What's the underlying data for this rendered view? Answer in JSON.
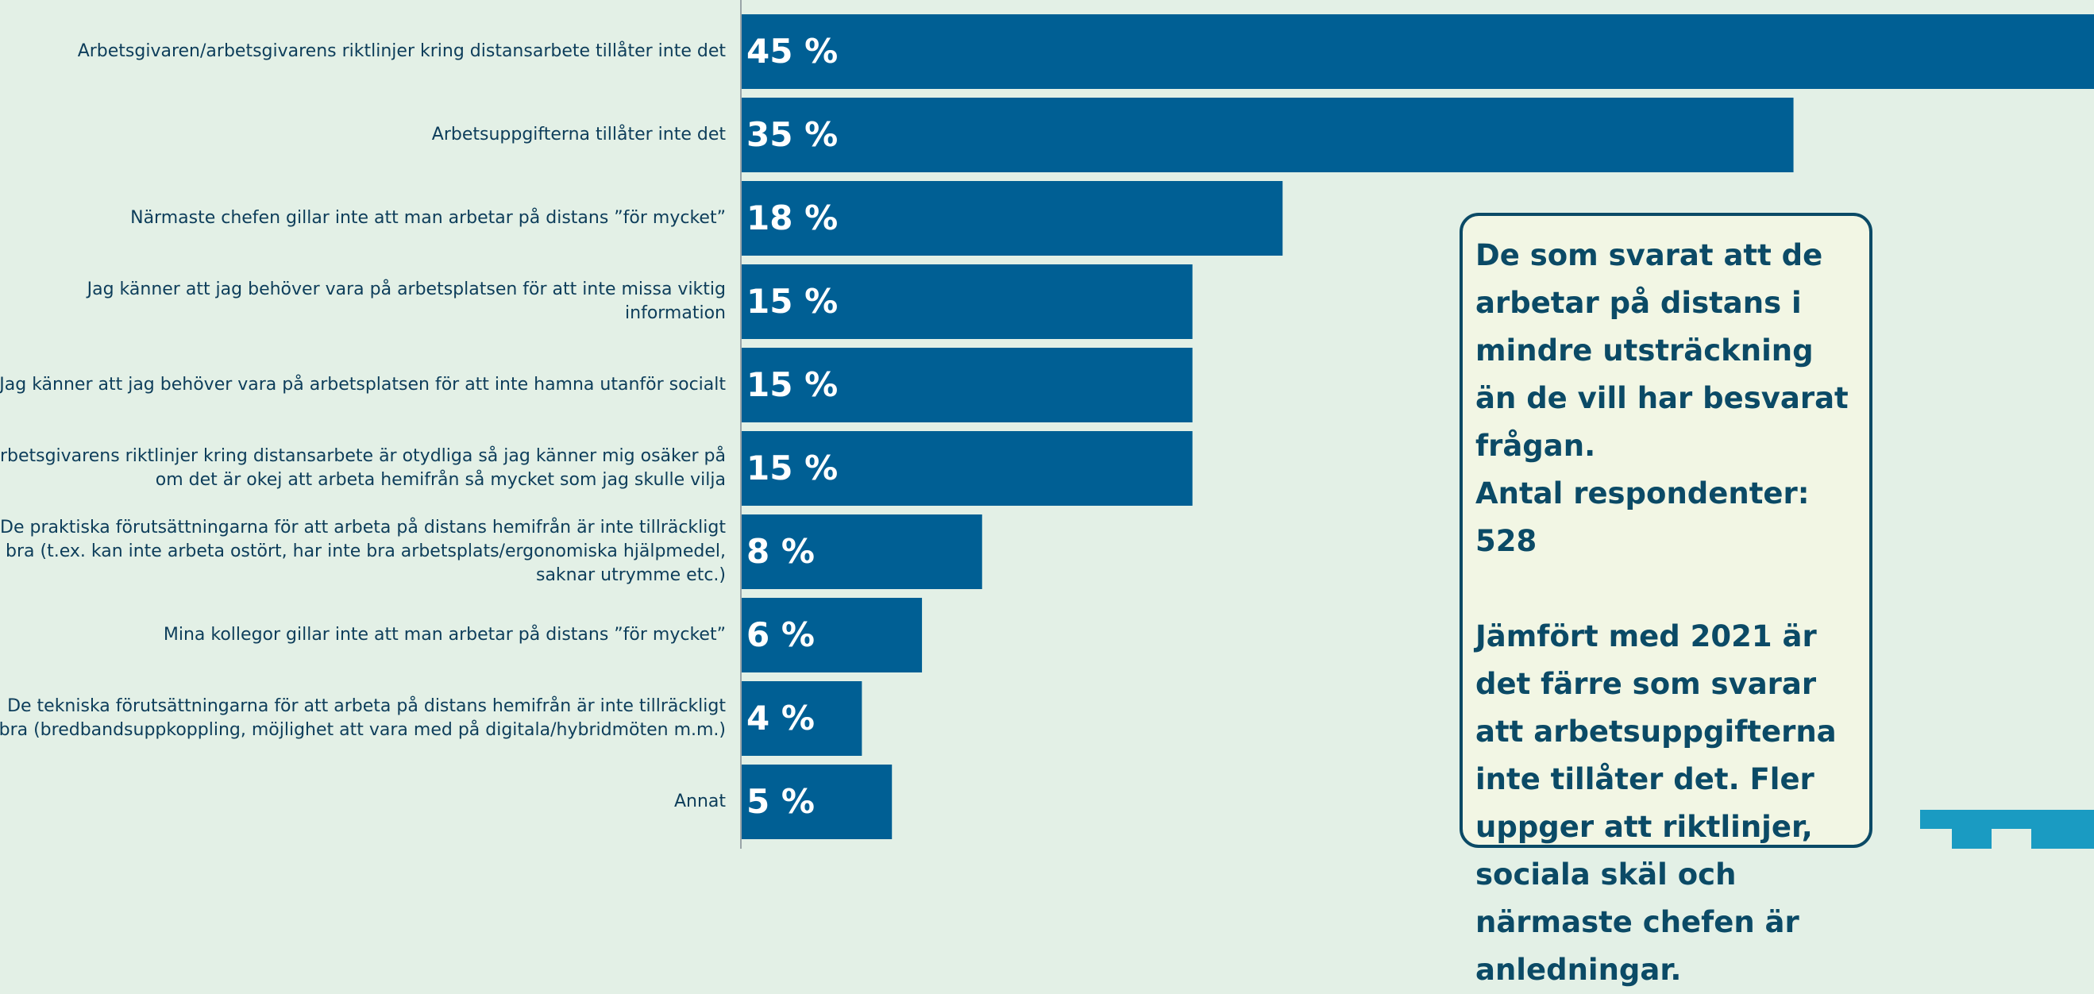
{
  "chart_data": {
    "type": "bar",
    "orientation": "horizontal",
    "categories": [
      "Arbetsgivaren/arbetsgivarens riktlinjer kring distansarbete tillåter inte det",
      "Arbetsuppgifterna tillåter inte det",
      "Närmaste chefen gillar inte att man arbetar på distans ”för mycket”",
      "Jag känner att jag behöver vara på arbetsplatsen för att inte missa viktig information",
      "Jag känner att jag behöver vara på arbetsplatsen för att inte hamna utanför socialt",
      "Arbetsgivarens riktlinjer kring distansarbete är otydliga så jag känner mig osäker på om det är okej att arbeta hemifrån så mycket som jag skulle vilja",
      "De praktiska förutsättningarna för att arbeta på distans hemifrån är inte tillräckligt bra (t.ex. kan inte arbeta ostört, har inte bra arbetsplats/ergonomiska hjälpmedel, saknar utrymme etc.)",
      "Mina kollegor gillar inte att man arbetar på distans ”för mycket”",
      "De tekniska förutsättningarna för att arbeta på distans hemifrån är inte tillräckligt bra (bredbandsuppkoppling, möjlighet att vara med på digitala/hybridmöten m.m.)",
      "Annat"
    ],
    "values": [
      45,
      35,
      18,
      15,
      15,
      15,
      8,
      6,
      4,
      5
    ],
    "value_labels": [
      "45 %",
      "35 %",
      "18 %",
      "15 %",
      "15 %",
      "15 %",
      "8 %",
      "6 %",
      "4 %",
      "5 %"
    ],
    "title": "",
    "xlabel": "",
    "ylabel": "",
    "xlim": [
      0,
      45
    ],
    "grid": false,
    "colors": {
      "bar": "#005f94",
      "background": "#e3f0e6",
      "axis": "#9aa5a8"
    }
  },
  "note": {
    "paragraph1": "De som svarat att de arbetar på distans i mindre utsträckning än de vill har besvarat frågan.",
    "paragraph2": "Antal respondenter: 528",
    "paragraph3": "Jämfört med 2021 är det färre som svarar att arbetsuppgifterna inte tillåter det. Fler uppger att riktlinjer, sociala skäl och närmaste chefen är anledningar.",
    "border_color": "#0b4a66",
    "fill_color": "#f2f6e4"
  },
  "logo": {
    "icon": "logo-mark-icon",
    "color": "#1a9bc2"
  }
}
